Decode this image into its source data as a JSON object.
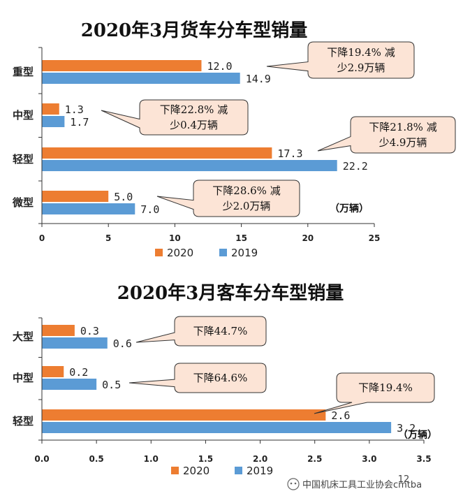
{
  "colors": {
    "s2020": "#ED7D31",
    "s2019": "#5B9BD5",
    "callout_fill": "#FCE4D6",
    "callout_stroke": "#333333"
  },
  "watermark": {
    "text": "中国机床工具工业协会cmtba",
    "page": "12"
  },
  "chart_data": [
    {
      "type": "bar",
      "orientation": "horizontal",
      "title": "2020年3月货车分车型销量",
      "unit_label": "（万辆）",
      "categories": [
        "重型",
        "中型",
        "轻型",
        "微型"
      ],
      "series": [
        {
          "name": "2020",
          "values": [
            12.0,
            1.3,
            17.3,
            5.0
          ],
          "labels": [
            "12.0",
            "1.3",
            "17.3",
            "5.0"
          ]
        },
        {
          "name": "2019",
          "values": [
            14.9,
            1.7,
            22.2,
            7.0
          ],
          "labels": [
            "14.9",
            "1.7",
            "22.2",
            "7.0"
          ]
        }
      ],
      "xlim": [
        0,
        25
      ],
      "xticks": [
        "0",
        "5",
        "10",
        "15",
        "20",
        "25"
      ],
      "grid": false,
      "legend": "bottom",
      "annotations": [
        {
          "lines": [
            "下降19.4% 减",
            "少2.9万辆"
          ]
        },
        {
          "lines": [
            "下降22.8% 减",
            "少0.4万辆"
          ]
        },
        {
          "lines": [
            "下降21.8% 减",
            "少4.9万辆"
          ]
        },
        {
          "lines": [
            "下降28.6% 减",
            "少2.0万辆"
          ]
        }
      ]
    },
    {
      "type": "bar",
      "orientation": "horizontal",
      "title": "2020年3月客车分车型销量",
      "unit_label": "（万辆）",
      "categories": [
        "大型",
        "中型",
        "轻型"
      ],
      "series": [
        {
          "name": "2020",
          "values": [
            0.3,
            0.2,
            2.6
          ],
          "labels": [
            "0.3",
            "0.2",
            "2.6"
          ]
        },
        {
          "name": "2019",
          "values": [
            0.6,
            0.5,
            3.2
          ],
          "labels": [
            "0.6",
            "0.5",
            "3.2"
          ]
        }
      ],
      "xlim": [
        0,
        3.5
      ],
      "xticks": [
        "0.0",
        "0.5",
        "1.0",
        "1.5",
        "2.0",
        "2.5",
        "3.0",
        "3.5"
      ],
      "grid": false,
      "legend": "bottom",
      "annotations": [
        {
          "lines": [
            "下降44.7%"
          ]
        },
        {
          "lines": [
            "下降64.6%"
          ]
        },
        {
          "lines": [
            "下降19.4%"
          ]
        }
      ]
    }
  ]
}
